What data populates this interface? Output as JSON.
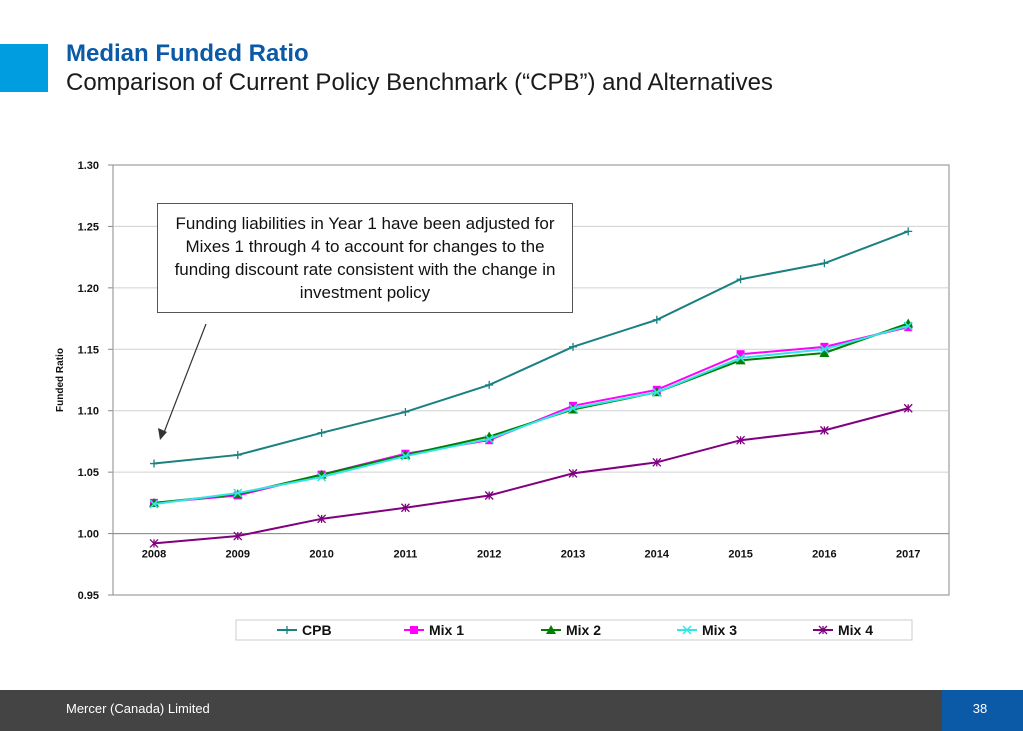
{
  "header": {
    "title": "Median Funded Ratio",
    "subtitle": "Comparison of Current Policy Benchmark (“CPB”) and Alternatives"
  },
  "annotation": {
    "text": "Funding liabilities in Year 1 have been adjusted for Mixes 1 through 4 to account for changes to the funding discount rate consistent with the change in investment policy"
  },
  "footer": {
    "company": "Mercer (Canada) Limited",
    "page_number": "38"
  },
  "colors": {
    "accent": "#009de0",
    "brand": "#0a5aa8",
    "footer_bg": "#444444"
  },
  "chart_data": {
    "type": "line",
    "title": "",
    "xlabel": "",
    "ylabel": "Funded Ratio",
    "x": [
      "2008",
      "2009",
      "2010",
      "2011",
      "2012",
      "2013",
      "2014",
      "2015",
      "2016",
      "2017"
    ],
    "ylim": [
      0.95,
      1.3
    ],
    "y_ticks": [
      "1.30",
      "1.25",
      "1.20",
      "1.15",
      "1.10",
      "1.05",
      "1.00",
      "0.95"
    ],
    "y_tick_values": [
      1.3,
      1.25,
      1.2,
      1.15,
      1.1,
      1.05,
      1.0,
      0.95
    ],
    "grid": true,
    "legend_position": "bottom",
    "series": [
      {
        "name": "CPB",
        "color": "#1a8080",
        "marker": "plus",
        "values": [
          1.057,
          1.064,
          1.082,
          1.099,
          1.121,
          1.152,
          1.174,
          1.207,
          1.22,
          1.246
        ]
      },
      {
        "name": "Mix 1",
        "color": "#ff00ff",
        "marker": "square",
        "values": [
          1.025,
          1.031,
          1.048,
          1.065,
          1.076,
          1.104,
          1.117,
          1.146,
          1.152,
          1.168
        ]
      },
      {
        "name": "Mix 2",
        "color": "#008000",
        "marker": "triangle",
        "values": [
          1.025,
          1.032,
          1.048,
          1.064,
          1.079,
          1.101,
          1.115,
          1.141,
          1.147,
          1.171
        ]
      },
      {
        "name": "Mix 3",
        "color": "#33e5e5",
        "marker": "x",
        "values": [
          1.024,
          1.033,
          1.046,
          1.063,
          1.077,
          1.102,
          1.115,
          1.143,
          1.15,
          1.169
        ]
      },
      {
        "name": "Mix 4",
        "color": "#800080",
        "marker": "asterisk",
        "values": [
          0.992,
          0.998,
          1.012,
          1.021,
          1.031,
          1.049,
          1.058,
          1.076,
          1.084,
          1.102
        ]
      }
    ]
  }
}
